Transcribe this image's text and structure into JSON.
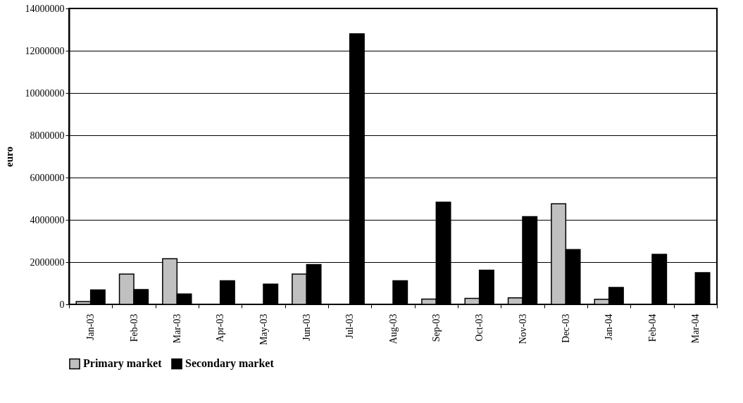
{
  "chart_data": {
    "type": "bar",
    "ylabel": "euro",
    "categories": [
      "Jan-03",
      "Feb-03",
      "Mar-03",
      "Apr-03",
      "May-03",
      "Jun-03",
      "Jul-03",
      "Aug-03",
      "Sep-03",
      "Oct-03",
      "Nov-03",
      "Dec-03",
      "Jan-04",
      "Feb-04",
      "Mar-04"
    ],
    "series": [
      {
        "name": "Primary market",
        "color": "#c0c0c0",
        "values": [
          130000,
          1430000,
          2160000,
          null,
          null,
          1430000,
          null,
          null,
          250000,
          280000,
          310000,
          4760000,
          240000,
          null,
          null
        ]
      },
      {
        "name": "Secondary market",
        "color": "#000000",
        "values": [
          680000,
          700000,
          490000,
          1120000,
          960000,
          1880000,
          12800000,
          1120000,
          4830000,
          1620000,
          4150000,
          2590000,
          800000,
          2370000,
          1500000
        ]
      }
    ],
    "ylim": [
      0,
      14000000
    ],
    "yticks": [
      0,
      2000000,
      4000000,
      6000000,
      8000000,
      10000000,
      12000000,
      14000000
    ],
    "grid": "y",
    "legend": "bottom"
  }
}
